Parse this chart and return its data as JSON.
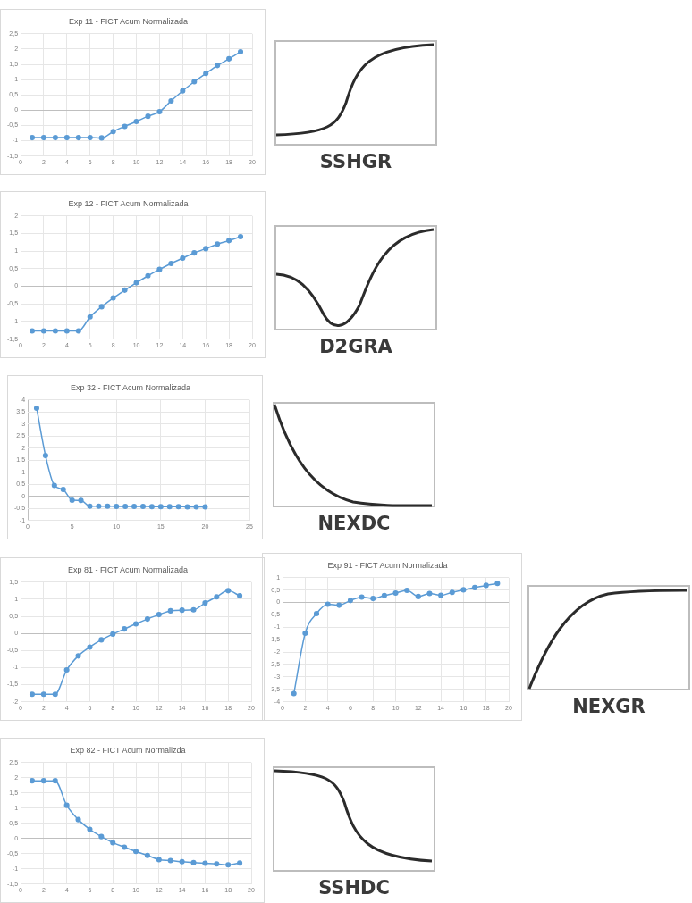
{
  "chart_data": [
    {
      "type": "line",
      "title": "Exp 11 - FICT Acum Normalizada",
      "x": [
        1,
        2,
        3,
        4,
        5,
        6,
        7,
        8,
        9,
        10,
        11,
        12,
        13,
        14,
        15,
        16,
        17,
        18,
        19
      ],
      "values": [
        -0.9,
        -0.9,
        -0.9,
        -0.9,
        -0.9,
        -0.9,
        -0.91,
        -0.7,
        -0.53,
        -0.37,
        -0.2,
        -0.05,
        0.3,
        0.63,
        0.93,
        1.2,
        1.46,
        1.68,
        1.91
      ],
      "color": "#5b9bd5",
      "marker": "circle",
      "grid": true,
      "xlim": [
        0,
        20
      ],
      "xticks": [
        0,
        2,
        4,
        6,
        8,
        10,
        12,
        14,
        16,
        18,
        20
      ],
      "ylim": [
        -1.5,
        2.5
      ],
      "yticks": [
        {
          "value": -1.5,
          "label": "-1,5"
        },
        -1,
        {
          "value": -0.5,
          "label": "-0,5"
        },
        0,
        {
          "value": 0.5,
          "label": "0,5"
        },
        1,
        {
          "value": 1.5,
          "label": "1,5"
        },
        2,
        {
          "value": 2.5,
          "label": "2,5"
        }
      ]
    },
    {
      "type": "other",
      "title": "SSHGR"
    },
    {
      "type": "line",
      "title": "Exp 12 - FICT Acum Normalizada",
      "x": [
        1,
        2,
        3,
        4,
        5,
        6,
        7,
        8,
        9,
        10,
        11,
        12,
        13,
        14,
        15,
        16,
        17,
        18,
        19
      ],
      "values": [
        -1.27,
        -1.27,
        -1.27,
        -1.27,
        -1.27,
        -0.87,
        -0.58,
        -0.33,
        -0.11,
        0.1,
        0.3,
        0.48,
        0.65,
        0.8,
        0.95,
        1.07,
        1.2,
        1.3,
        1.41
      ],
      "color": "#5b9bd5",
      "marker": "circle",
      "grid": true,
      "xlim": [
        0,
        20
      ],
      "xticks": [
        0,
        2,
        4,
        6,
        8,
        10,
        12,
        14,
        16,
        18,
        20
      ],
      "ylim": [
        -1.5,
        2
      ],
      "yticks": [
        {
          "value": -1.5,
          "label": "-1,5"
        },
        -1,
        {
          "value": -0.5,
          "label": "-0,5"
        },
        0,
        {
          "value": 0.5,
          "label": "0,5"
        },
        1,
        {
          "value": 1.5,
          "label": "1,5"
        },
        2
      ]
    },
    {
      "type": "other",
      "title": "D2GRA"
    },
    {
      "type": "line",
      "title": "Exp 32 - FICT Acum Normalizada",
      "x": [
        1,
        2,
        3,
        4,
        5,
        6,
        7,
        8,
        9,
        10,
        11,
        12,
        13,
        14,
        15,
        16,
        17,
        18,
        19,
        20
      ],
      "values": [
        3.66,
        1.69,
        0.45,
        0.28,
        -0.16,
        -0.17,
        -0.41,
        -0.41,
        -0.41,
        -0.42,
        -0.42,
        -0.42,
        -0.42,
        -0.43,
        -0.43,
        -0.43,
        -0.43,
        -0.44,
        -0.44,
        -0.44
      ],
      "color": "#5b9bd5",
      "marker": "circle",
      "grid": true,
      "xlim": [
        0,
        25
      ],
      "xticks": [
        0,
        5,
        10,
        15,
        20,
        25
      ],
      "ylim": [
        -1,
        4
      ],
      "yticks": [
        -1,
        {
          "value": -0.5,
          "label": "-0,5"
        },
        0,
        {
          "value": 0.5,
          "label": "0,5"
        },
        1,
        {
          "value": 1.5,
          "label": "1,5"
        },
        2,
        {
          "value": 2.5,
          "label": "2,5"
        },
        3,
        {
          "value": 3.5,
          "label": "3,5"
        },
        4
      ]
    },
    {
      "type": "other",
      "title": "NEXDC"
    },
    {
      "type": "line",
      "title": "Exp 81 - FICT Acum Normalizada",
      "x": [
        1,
        2,
        3,
        4,
        5,
        6,
        7,
        8,
        9,
        10,
        11,
        12,
        13,
        14,
        15,
        16,
        17,
        18,
        19
      ],
      "values": [
        -1.78,
        -1.78,
        -1.78,
        -1.07,
        -0.66,
        -0.4,
        -0.19,
        -0.02,
        0.13,
        0.28,
        0.42,
        0.55,
        0.66,
        0.68,
        0.69,
        0.89,
        1.07,
        1.25,
        1.1
      ],
      "color": "#5b9bd5",
      "marker": "circle",
      "grid": true,
      "xlim": [
        0,
        20
      ],
      "xticks": [
        0,
        2,
        4,
        6,
        8,
        10,
        12,
        14,
        16,
        18,
        20
      ],
      "ylim": [
        -2,
        1.5
      ],
      "yticks": [
        -2,
        {
          "value": -1.5,
          "label": "-1,5"
        },
        -1,
        {
          "value": -0.5,
          "label": "-0,5"
        },
        0,
        {
          "value": 0.5,
          "label": "0,5"
        },
        1,
        {
          "value": 1.5,
          "label": "1,5"
        }
      ]
    },
    {
      "type": "line",
      "title": "Exp 91 - FICT Acum Normalizada",
      "x": [
        1,
        2,
        3,
        4,
        5,
        6,
        7,
        8,
        9,
        10,
        11,
        12,
        13,
        14,
        15,
        16,
        17,
        18,
        19
      ],
      "values": [
        -3.67,
        -1.24,
        -0.45,
        -0.07,
        -0.11,
        0.08,
        0.22,
        0.16,
        0.28,
        0.38,
        0.49,
        0.24,
        0.36,
        0.29,
        0.41,
        0.51,
        0.6,
        0.69,
        0.77
      ],
      "color": "#5b9bd5",
      "marker": "circle",
      "grid": true,
      "xlim": [
        0,
        20
      ],
      "xticks": [
        0,
        2,
        4,
        6,
        8,
        10,
        12,
        14,
        16,
        18,
        20
      ],
      "ylim": [
        -4,
        1
      ],
      "yticks": [
        -4,
        {
          "value": -3.5,
          "label": "-3,5"
        },
        -3,
        {
          "value": -2.5,
          "label": "-2,5"
        },
        -2,
        {
          "value": -1.5,
          "label": "-1,5"
        },
        -1,
        {
          "value": -0.5,
          "label": "-0,5"
        },
        0,
        {
          "value": 0.5,
          "label": "0,5"
        },
        1
      ]
    },
    {
      "type": "other",
      "title": "NEXGR"
    },
    {
      "type": "line",
      "title": "Exp 82 - FICT Acum Normalizda",
      "x": [
        1,
        2,
        3,
        4,
        5,
        6,
        7,
        8,
        9,
        10,
        11,
        12,
        13,
        14,
        15,
        16,
        17,
        18,
        19
      ],
      "values": [
        1.9,
        1.9,
        1.9,
        1.09,
        0.62,
        0.3,
        0.06,
        -0.14,
        -0.29,
        -0.43,
        -0.56,
        -0.7,
        -0.73,
        -0.77,
        -0.8,
        -0.82,
        -0.84,
        -0.87,
        -0.81
      ],
      "color": "#5b9bd5",
      "marker": "circle",
      "grid": true,
      "xlim": [
        0,
        20
      ],
      "xticks": [
        0,
        2,
        4,
        6,
        8,
        10,
        12,
        14,
        16,
        18,
        20
      ],
      "ylim": [
        -1.5,
        2.5
      ],
      "yticks": [
        {
          "value": -1.5,
          "label": "-1,5"
        },
        -1,
        {
          "value": -0.5,
          "label": "-0,5"
        },
        0,
        {
          "value": 0.5,
          "label": "0,5"
        },
        1,
        {
          "value": 1.5,
          "label": "1,5"
        },
        2,
        {
          "value": 2.5,
          "label": "2,5"
        }
      ]
    },
    {
      "type": "other",
      "title": "SSHDC"
    }
  ]
}
